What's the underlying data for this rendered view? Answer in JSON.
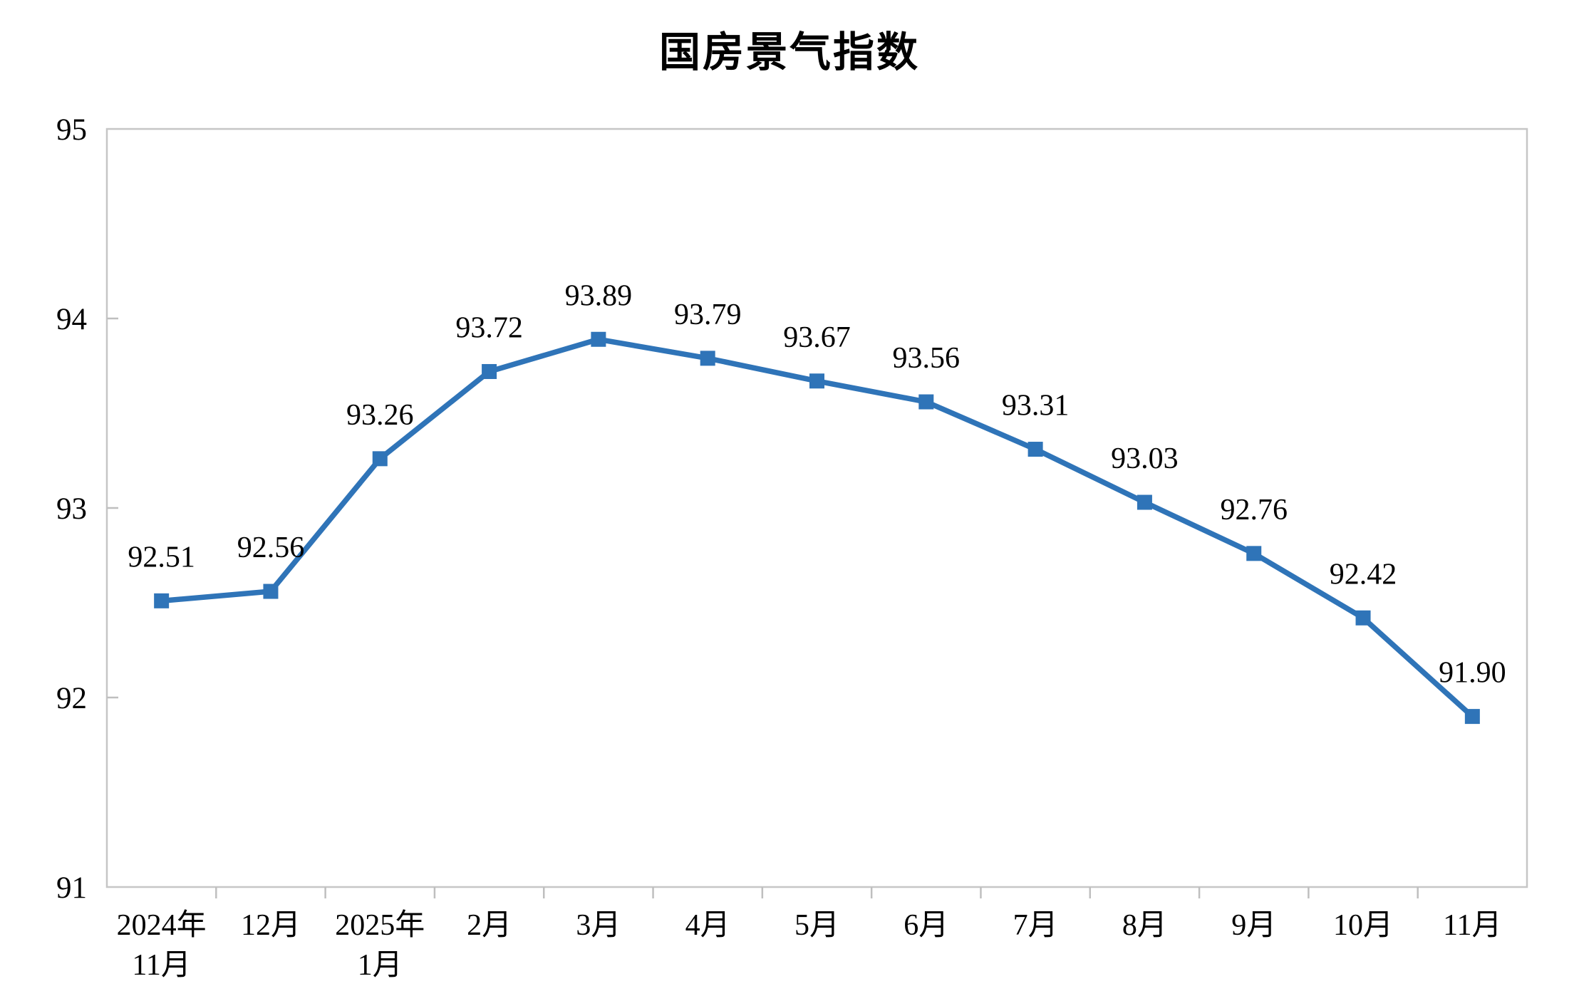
{
  "chart_data": {
    "type": "line",
    "title": "国房景气指数",
    "categories": [
      "2024年\n11月",
      "12月",
      "2025年\n1月",
      "2月",
      "3月",
      "4月",
      "5月",
      "6月",
      "7月",
      "8月",
      "9月",
      "10月",
      "11月"
    ],
    "values": [
      92.51,
      92.56,
      93.26,
      93.72,
      93.89,
      93.79,
      93.67,
      93.56,
      93.31,
      93.03,
      92.76,
      92.42,
      91.9
    ],
    "data_labels": [
      "92.51",
      "92.56",
      "93.26",
      "93.72",
      "93.89",
      "93.79",
      "93.67",
      "93.56",
      "93.31",
      "93.03",
      "92.76",
      "92.42",
      "91.90"
    ],
    "xlabel": "",
    "ylabel": "",
    "ylim": [
      91,
      95
    ],
    "yticks": [
      91,
      92,
      93,
      94,
      95
    ],
    "grid": false,
    "legend_position": "none",
    "marker": "square",
    "colors": {
      "series": "#2F74B8",
      "frame": "#C6C6C6",
      "tick": "#BFBFBF",
      "text": "#000000",
      "background": "#FFFFFF"
    }
  }
}
